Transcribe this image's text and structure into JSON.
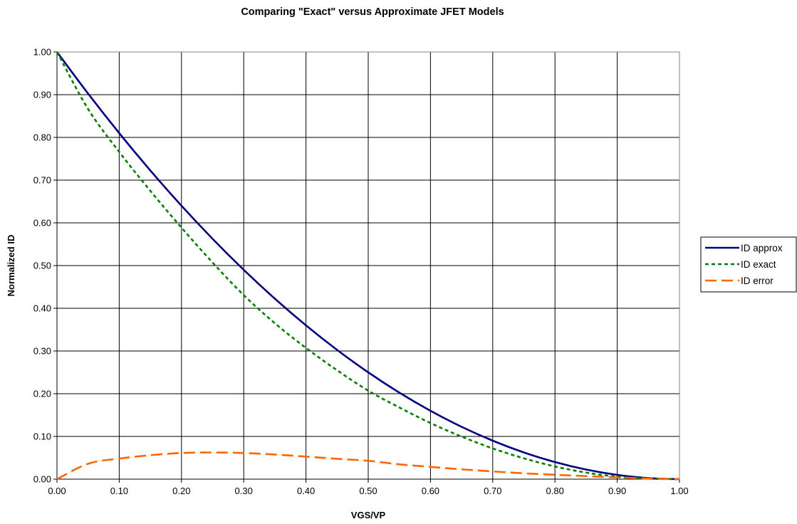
{
  "chart_data": {
    "type": "line",
    "title": "Comparing \"Exact\" versus Approximate JFET Models",
    "xlabel": "VGS/VP",
    "ylabel": "Normalized ID",
    "xlim": [
      0,
      1
    ],
    "ylim": [
      0,
      1
    ],
    "grid": true,
    "legend_position": "right",
    "x_ticks": [
      "0.00",
      "0.10",
      "0.20",
      "0.30",
      "0.40",
      "0.50",
      "0.60",
      "0.70",
      "0.80",
      "0.90",
      "1.00"
    ],
    "y_ticks": [
      "0.00",
      "0.10",
      "0.20",
      "0.30",
      "0.40",
      "0.50",
      "0.60",
      "0.70",
      "0.80",
      "0.90",
      "1.00"
    ],
    "x": [
      0,
      0.05,
      0.1,
      0.15,
      0.2,
      0.25,
      0.3,
      0.35,
      0.4,
      0.45,
      0.5,
      0.55,
      0.6,
      0.65,
      0.7,
      0.75,
      0.8,
      0.85,
      0.9,
      0.95,
      1.0
    ],
    "series": [
      {
        "name": "ID approx",
        "color": "#000080",
        "style": "solid",
        "values": [
          1.0,
          0.9025,
          0.81,
          0.7225,
          0.64,
          0.5625,
          0.49,
          0.4225,
          0.36,
          0.3025,
          0.25,
          0.2025,
          0.16,
          0.1225,
          0.09,
          0.0625,
          0.04,
          0.0225,
          0.01,
          0.0025,
          0.0
        ]
      },
      {
        "name": "ID exact",
        "color": "#008000",
        "style": "dotted",
        "values": [
          1.0,
          0.8664,
          0.7659,
          0.6749,
          0.5888,
          0.5069,
          0.4308,
          0.3649,
          0.3072,
          0.2549,
          0.2071,
          0.1678,
          0.1313,
          0.0996,
          0.0719,
          0.0488,
          0.0297,
          0.0154,
          0.0058,
          0.0011,
          0.0
        ]
      },
      {
        "name": "ID error",
        "color": "#ff6600",
        "style": "dashed",
        "values": [
          0.0,
          0.0361,
          0.0481,
          0.0561,
          0.0612,
          0.0625,
          0.0612,
          0.0576,
          0.0528,
          0.0476,
          0.0429,
          0.0347,
          0.0287,
          0.0229,
          0.0181,
          0.0137,
          0.0103,
          0.0071,
          0.0042,
          0.0014,
          0.0
        ]
      }
    ]
  }
}
